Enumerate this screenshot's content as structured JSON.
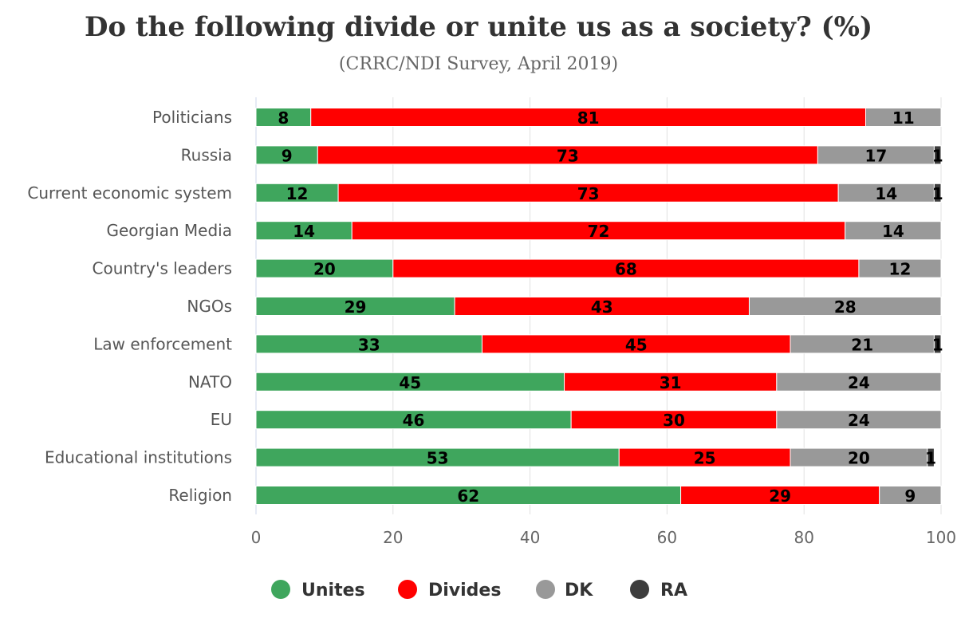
{
  "chart_data": {
    "type": "bar",
    "orientation": "horizontal",
    "stacked": true,
    "title": "Do the following divide or unite us as a society? (%)",
    "subtitle": "(CRRC/NDI Survey, April 2019)",
    "xlim": [
      0,
      100
    ],
    "xticks": [
      0,
      20,
      40,
      60,
      80,
      100
    ],
    "grid": "vertical",
    "legend_position": "bottom",
    "categories": [
      "Politicians",
      "Russia",
      "Current economic system",
      "Georgian Media",
      "Country's leaders",
      "NGOs",
      "Law enforcement",
      "NATO",
      "EU",
      "Educational institutions",
      "Religion"
    ],
    "series": [
      {
        "name": "Unites",
        "color": "#3fa65d",
        "values": [
          8,
          9,
          12,
          14,
          20,
          29,
          33,
          45,
          46,
          53,
          62
        ]
      },
      {
        "name": "Divides",
        "color": "#ff0000",
        "values": [
          81,
          73,
          73,
          72,
          68,
          43,
          45,
          31,
          30,
          25,
          29
        ]
      },
      {
        "name": "DK",
        "color": "#999999",
        "values": [
          11,
          17,
          14,
          14,
          12,
          28,
          21,
          24,
          24,
          20,
          9
        ]
      },
      {
        "name": "RA",
        "color": "#3d3d3d",
        "values": [
          0,
          1,
          1,
          0,
          0,
          0,
          1,
          0,
          0,
          1,
          0
        ]
      }
    ]
  }
}
